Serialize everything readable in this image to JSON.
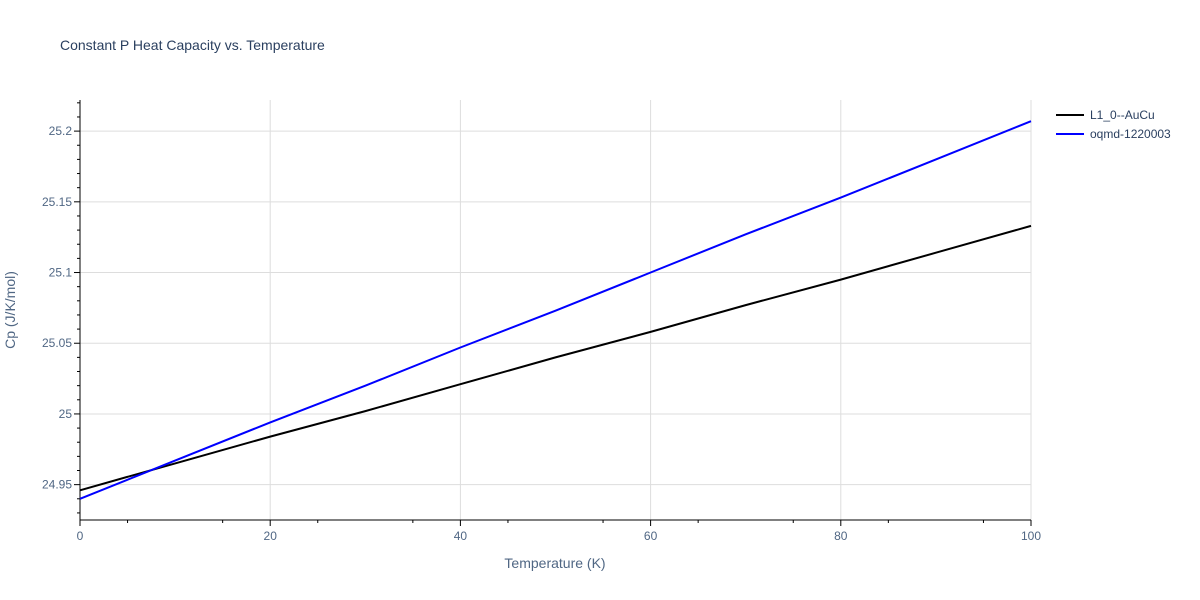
{
  "chart_data": {
    "type": "line",
    "title": "Constant P Heat Capacity vs. Temperature",
    "xlabel": "Temperature (K)",
    "ylabel": "Cp (J/K/mol)",
    "xlim": [
      0,
      100
    ],
    "ylim": [
      24.925,
      25.222
    ],
    "x_ticks": [
      0,
      20,
      40,
      60,
      80,
      100
    ],
    "x_tick_labels": [
      "0",
      "20",
      "40",
      "60",
      "80",
      "100"
    ],
    "y_ticks": [
      24.95,
      25,
      25.05,
      25.1,
      25.15,
      25.2
    ],
    "y_tick_labels": [
      "24.95",
      "25",
      "25.05",
      "25.1",
      "25.15",
      "25.2"
    ],
    "grid": true,
    "legend_position": "top-right",
    "series": [
      {
        "name": "L1_0--AuCu",
        "color": "#000000",
        "x": [
          0,
          10,
          20,
          30,
          40,
          50,
          60,
          70,
          80,
          90,
          100
        ],
        "y": [
          24.946,
          24.965,
          24.984,
          25.002,
          25.021,
          25.04,
          25.058,
          25.077,
          25.095,
          25.114,
          25.133
        ]
      },
      {
        "name": "oqmd-1220003",
        "color": "#0000ff",
        "x": [
          0,
          10,
          20,
          30,
          40,
          50,
          60,
          70,
          80,
          90,
          100
        ],
        "y": [
          24.94,
          24.967,
          24.994,
          25.02,
          25.047,
          25.073,
          25.1,
          25.127,
          25.153,
          25.18,
          25.207
        ]
      }
    ]
  }
}
